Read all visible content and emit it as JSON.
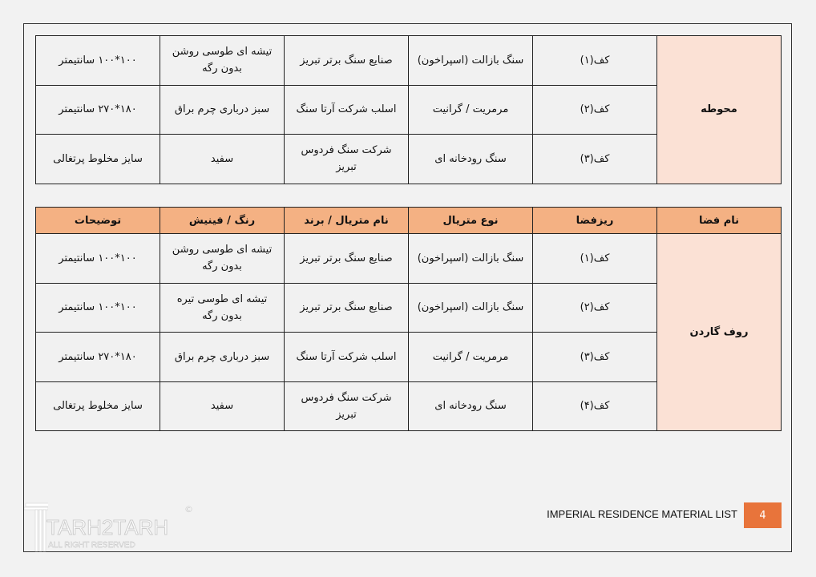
{
  "table1": {
    "space": "محوطه",
    "rows": [
      {
        "subspace": "کف(۱)",
        "type": "سنگ بازالت (اسپراخون)",
        "brand": "صنایع سنگ برتر تبریز",
        "finish": "تیشه ای طوسی روشن بدون رگه",
        "notes": "۱۰۰*۱۰۰ سانتیمتر"
      },
      {
        "subspace": "کف(۲)",
        "type": "مرمریت / گرانیت",
        "brand": "اسلب شرکت آرتا سنگ",
        "finish": "سبز درباری چرم براق",
        "notes": "۱۸۰*۲۷۰ سانتیمتر"
      },
      {
        "subspace": "کف(۳)",
        "type": "سنگ رودخانه ای",
        "brand": "شرکت سنگ فردوس تبریز",
        "finish": "سفید",
        "notes": "سایز مخلوط پرتغالی"
      }
    ]
  },
  "table2": {
    "headers": {
      "space": "نام فضا",
      "subspace": "ریزفضا",
      "type": "نوع متریال",
      "brand": "نام متریال / برند",
      "finish": "رنگ / فینیش",
      "notes": "توضیحات"
    },
    "space": "روف گاردن",
    "rows": [
      {
        "subspace": "کف(۱)",
        "type": "سنگ بازالت (اسپراخون)",
        "brand": "صنایع سنگ برتر تبریز",
        "finish": "تیشه ای طوسی روشن بدون رگه",
        "notes": "۱۰۰*۱۰۰ سانتیمتر"
      },
      {
        "subspace": "کف(۲)",
        "type": "سنگ بازالت (اسپراخون)",
        "brand": "صنایع سنگ برتر تبریز",
        "finish": "تیشه ای طوسی تیره بدون رگه",
        "notes": "۱۰۰*۱۰۰ سانتیمتر"
      },
      {
        "subspace": "کف(۳)",
        "type": "مرمریت / گرانیت",
        "brand": "اسلب شرکت آرتا سنگ",
        "finish": "سبز درباری چرم براق",
        "notes": "۱۸۰*۲۷۰ سانتیمتر"
      },
      {
        "subspace": "کف(۴)",
        "type": "سنگ رودخانه ای",
        "brand": "شرکت سنگ فردوس تبریز",
        "finish": "سفید",
        "notes": "سایز مخلوط پرتغالی"
      }
    ]
  },
  "footer": {
    "title": "IMPERIAL RESIDENCE MATERIAL LIST",
    "page": "4"
  },
  "logo": {
    "name": "TARH2TARH",
    "tagline": "ALL RIGHT RESERVED",
    "copyright": "©"
  },
  "colors": {
    "header": "#f4b183",
    "space_cell": "#fbe1d5",
    "page_box": "#e8743b"
  }
}
